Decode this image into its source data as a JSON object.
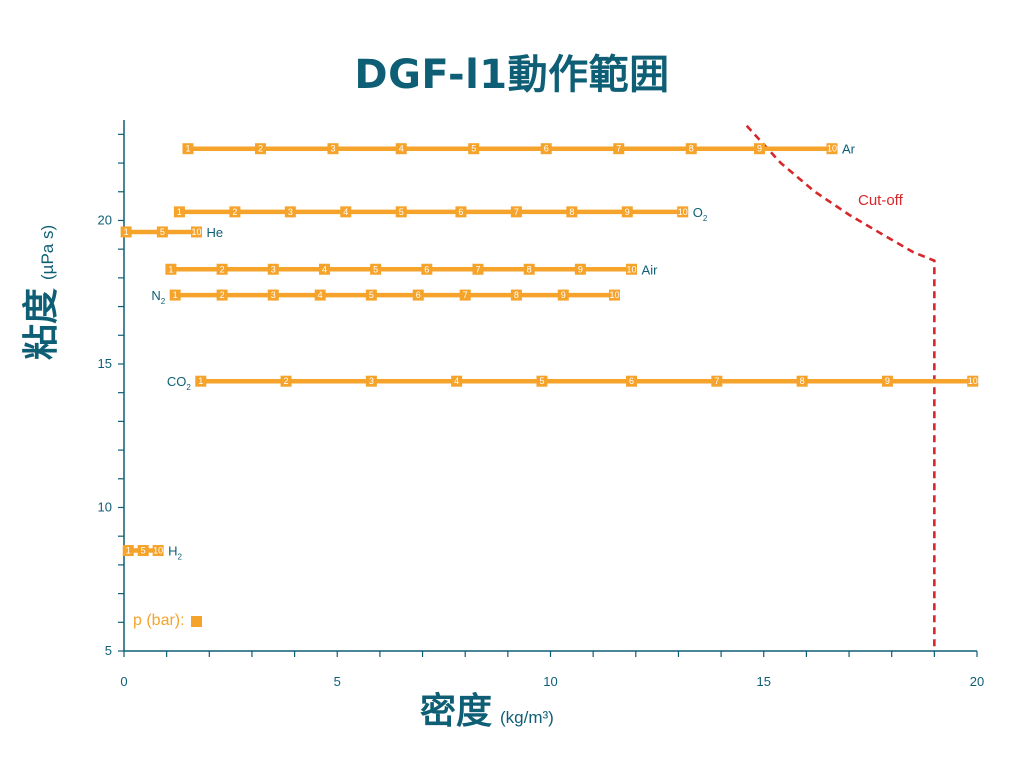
{
  "colors": {
    "axis": "#0e5f75",
    "series": "#f5a32a",
    "cutoff": "#d6272a",
    "marker_text": "#ffffff"
  },
  "title": "DGF-l1動作範囲",
  "legend": {
    "label": "p (bar):"
  },
  "cutoff_label": "Cut-off",
  "chart_data": {
    "type": "line",
    "title": "DGF-l1動作範囲",
    "xlabel": "密度",
    "xlabel_unit": "(kg/m³)",
    "ylabel": "粘度",
    "ylabel_unit": "(µPa s)",
    "xlim": [
      0,
      20
    ],
    "ylim": [
      5,
      23.5
    ],
    "x_ticks": [
      0,
      5,
      10,
      15,
      20
    ],
    "y_ticks": [
      5,
      10,
      15,
      20
    ],
    "grid": false,
    "marker_legend": "p (bar)",
    "series": [
      {
        "name": "Ar",
        "labels": [
          "1",
          "2",
          "3",
          "4",
          "5",
          "6",
          "7",
          "8",
          "9",
          "10"
        ],
        "x": [
          1.5,
          3.2,
          4.9,
          6.5,
          8.2,
          9.9,
          11.6,
          13.3,
          14.9,
          16.6
        ],
        "y": 22.5
      },
      {
        "name": "O2",
        "name_main": "O",
        "name_sub": "2",
        "labels": [
          "1",
          "2",
          "3",
          "4",
          "5",
          "6",
          "7",
          "8",
          "9",
          "10"
        ],
        "x": [
          1.3,
          2.6,
          3.9,
          5.2,
          6.5,
          7.9,
          9.2,
          10.5,
          11.8,
          13.1
        ],
        "y": 20.3
      },
      {
        "name": "He",
        "labels": [
          "1",
          "5",
          "10"
        ],
        "x": [
          0.05,
          0.9,
          1.7
        ],
        "y": 19.6
      },
      {
        "name": "Air",
        "labels": [
          "1",
          "2",
          "3",
          "4",
          "5",
          "6",
          "7",
          "8",
          "9",
          "10"
        ],
        "x": [
          1.1,
          2.3,
          3.5,
          4.7,
          5.9,
          7.1,
          8.3,
          9.5,
          10.7,
          11.9
        ],
        "y": 18.3
      },
      {
        "name": "N2",
        "name_main": "N",
        "name_sub": "2",
        "labels": [
          "1",
          "2",
          "3",
          "4",
          "5",
          "6",
          "7",
          "8",
          "9",
          "10"
        ],
        "x": [
          1.2,
          2.3,
          3.5,
          4.6,
          5.8,
          6.9,
          8.0,
          9.2,
          10.3,
          11.5
        ],
        "y": 17.4
      },
      {
        "name": "CO2",
        "name_main": "CO",
        "name_sub": "2",
        "labels": [
          "1",
          "2",
          "3",
          "4",
          "5",
          "6",
          "7",
          "8",
          "9",
          "10"
        ],
        "x": [
          1.8,
          3.8,
          5.8,
          7.8,
          9.8,
          11.9,
          13.9,
          15.9,
          17.9,
          19.9
        ],
        "y": 14.4
      },
      {
        "name": "H2",
        "name_main": "H",
        "name_sub": "2",
        "labels": [
          "1",
          "5",
          "10"
        ],
        "x": [
          0.1,
          0.45,
          0.8
        ],
        "y": 8.5
      }
    ],
    "cutoff": {
      "label": "Cut-off",
      "points": [
        [
          14.6,
          23.3
        ],
        [
          15.4,
          22.0
        ],
        [
          16.2,
          21.0
        ],
        [
          17.0,
          20.2
        ],
        [
          17.8,
          19.5
        ],
        [
          18.5,
          18.9
        ],
        [
          19.0,
          18.6
        ],
        [
          19.0,
          5.0
        ]
      ]
    }
  }
}
